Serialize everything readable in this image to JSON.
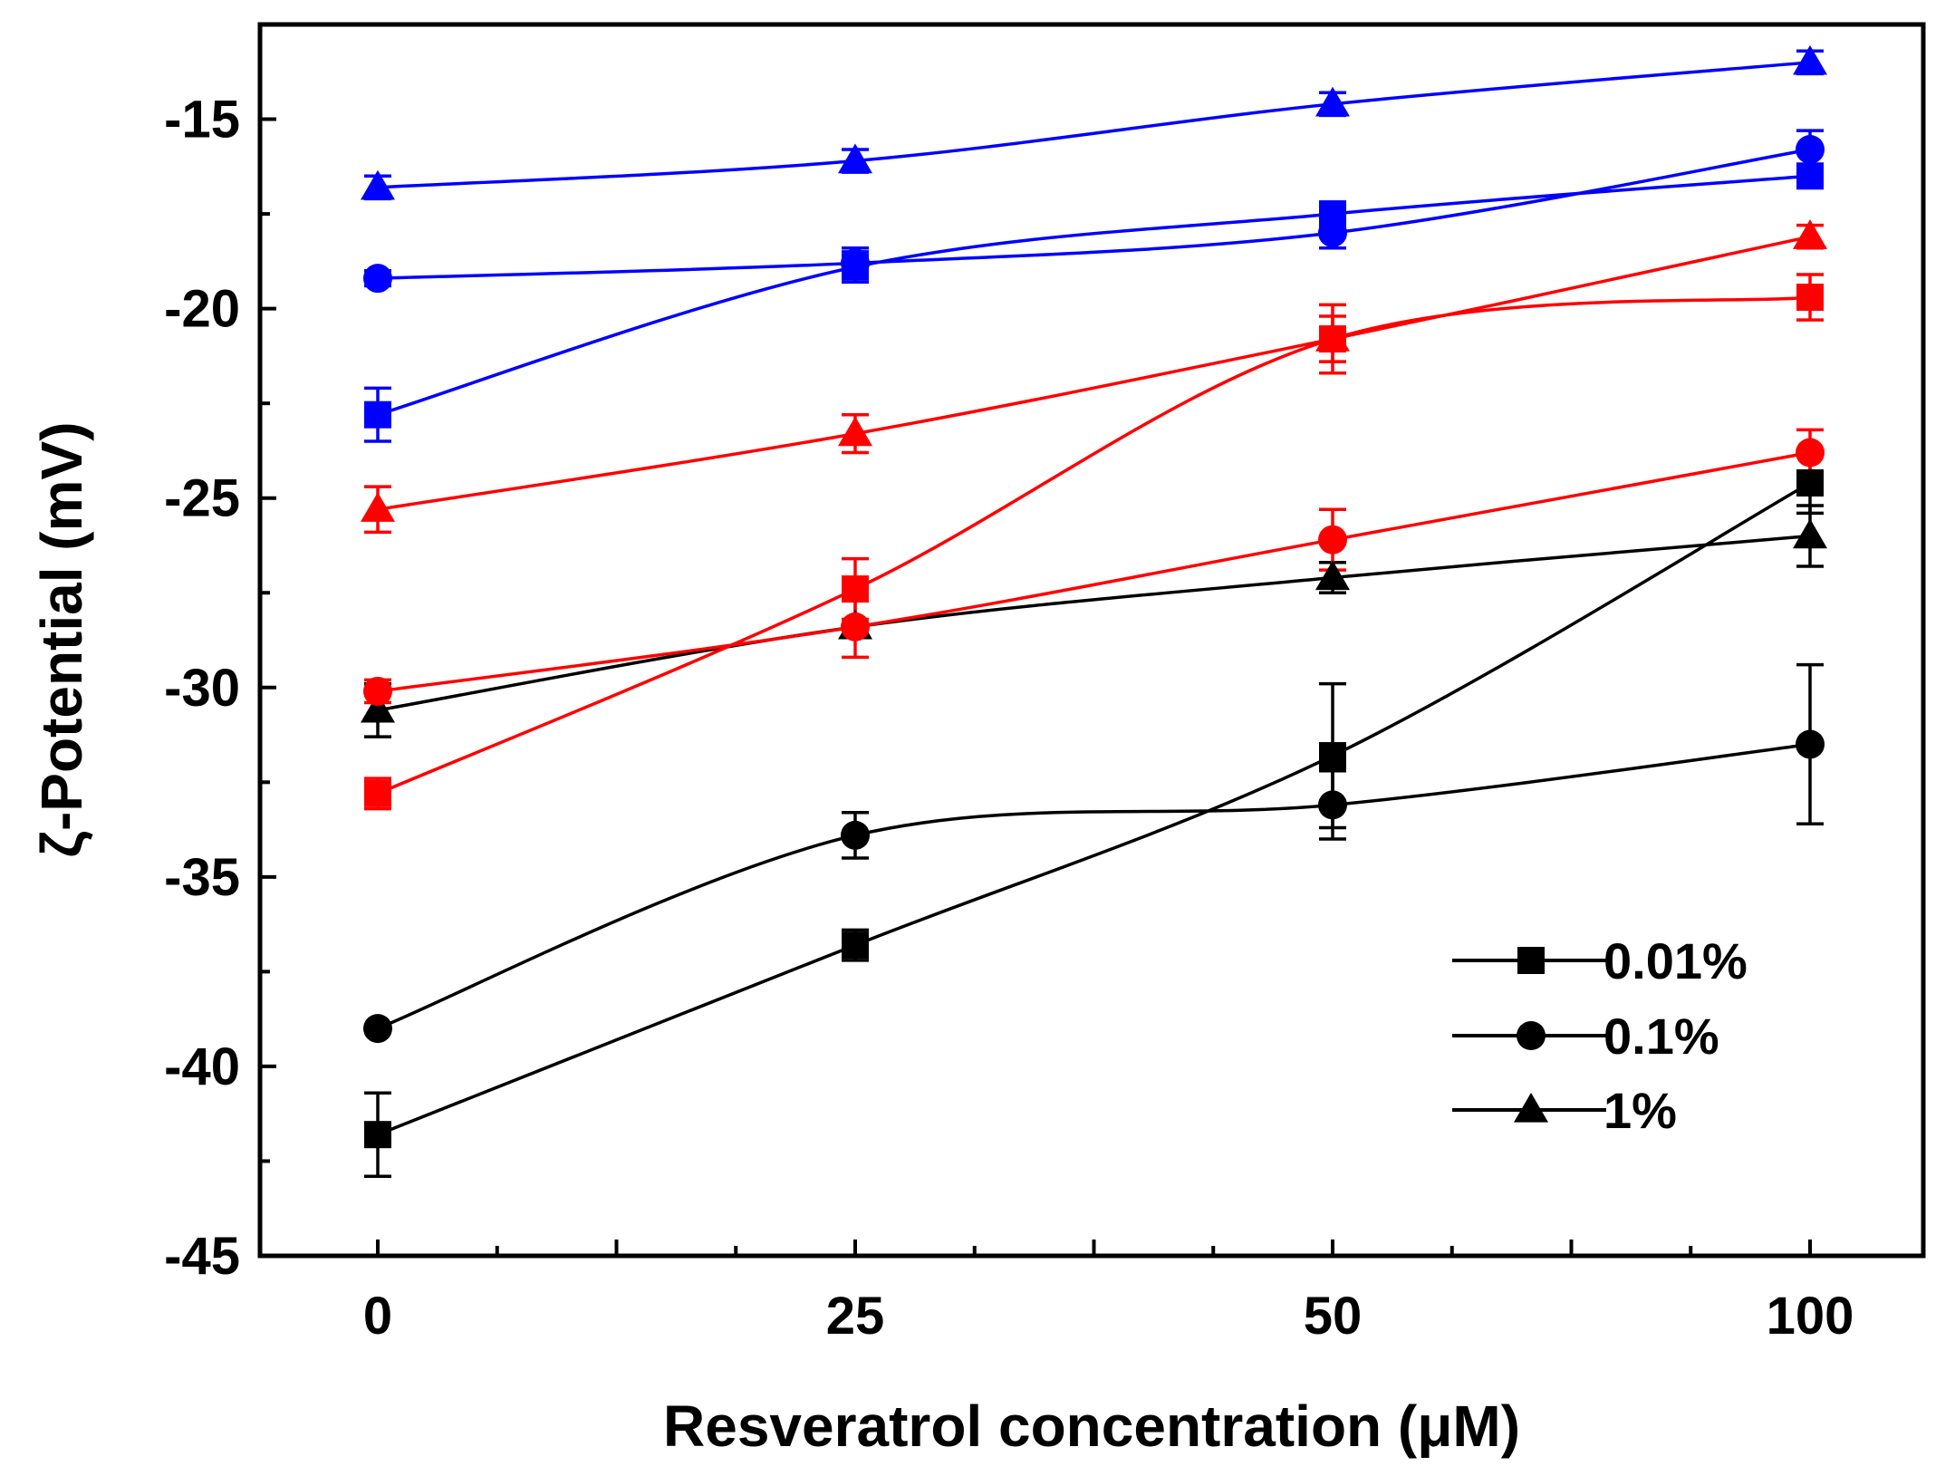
{
  "chart_data": {
    "type": "line",
    "title": "",
    "xlabel": "Resveratrol concentration (μM)",
    "ylabel": "ζ-Potential (mV)",
    "x_categories": [
      "0",
      "25",
      "50",
      "100"
    ],
    "ylim": [
      -45,
      -12.5
    ],
    "y_ticks": [
      -45,
      -40,
      -35,
      -30,
      -25,
      -20,
      -15
    ],
    "y_tick_labels": [
      "-45",
      "-40",
      "-35",
      "-30",
      "-25",
      "-20",
      "-15"
    ],
    "grid": false,
    "legend_position": "bottom-right",
    "legend": [
      {
        "label": "0.01%",
        "marker": "square"
      },
      {
        "label": "0.1%",
        "marker": "circle"
      },
      {
        "label": "1%",
        "marker": "triangle"
      }
    ],
    "series": [
      {
        "name": "0.01%",
        "group": "black",
        "color": "#000000",
        "marker": "square",
        "values": [
          -41.8,
          -36.8,
          -31.8,
          -24.6
        ],
        "errors": [
          1.1,
          0.4,
          1.9,
          0.8
        ]
      },
      {
        "name": "0.1%",
        "group": "black",
        "color": "#000000",
        "marker": "circle",
        "values": [
          -39.0,
          -33.9,
          -33.1,
          -31.5
        ],
        "errors": [
          0.0,
          0.6,
          0.9,
          2.1
        ]
      },
      {
        "name": "1%",
        "group": "black",
        "color": "#000000",
        "marker": "triangle",
        "values": [
          -30.6,
          -28.4,
          -27.1,
          -26.0
        ],
        "errors": [
          0.7,
          0.0,
          0.4,
          0.8
        ]
      },
      {
        "name": "0.01%",
        "group": "red",
        "color": "#ff0000",
        "marker": "square",
        "values": [
          -32.8,
          -27.4,
          -20.8,
          -19.7
        ],
        "errors": [
          0.4,
          0.8,
          0.9,
          0.6
        ]
      },
      {
        "name": "0.1%",
        "group": "red",
        "color": "#ff0000",
        "marker": "circle",
        "values": [
          -30.1,
          -28.4,
          -26.1,
          -23.8
        ],
        "errors": [
          0.3,
          0.8,
          0.8,
          0.6
        ]
      },
      {
        "name": "1%",
        "group": "red",
        "color": "#ff0000",
        "marker": "triangle",
        "values": [
          -25.3,
          -23.3,
          -20.8,
          -18.1
        ],
        "errors": [
          0.6,
          0.5,
          0.6,
          0.3
        ]
      },
      {
        "name": "0.01%",
        "group": "blue",
        "color": "#0000ff",
        "marker": "square",
        "values": [
          -22.8,
          -18.9,
          -17.5,
          -16.5
        ],
        "errors": [
          0.7,
          0.4,
          0.3,
          0.2
        ]
      },
      {
        "name": "0.1%",
        "group": "blue",
        "color": "#0000ff",
        "marker": "circle",
        "values": [
          -19.2,
          -18.8,
          -18.0,
          -15.8
        ],
        "errors": [
          0.2,
          0.4,
          0.4,
          0.5
        ]
      },
      {
        "name": "1%",
        "group": "blue",
        "color": "#0000ff",
        "marker": "triangle",
        "values": [
          -16.8,
          -16.1,
          -14.6,
          -13.5
        ],
        "errors": [
          0.3,
          0.3,
          0.3,
          0.3
        ]
      }
    ]
  }
}
